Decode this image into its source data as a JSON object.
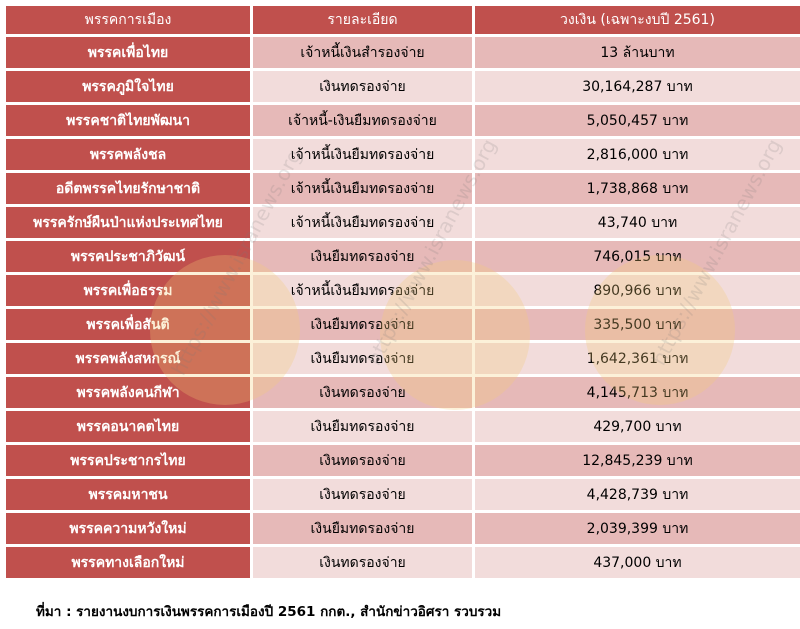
{
  "table": {
    "headers": [
      "พรรคการเมือง",
      "รายละเอียด",
      "วงเงิน (เฉพาะงบปี 2561)"
    ],
    "rows": [
      {
        "party": "พรรคเพื่อไทย",
        "detail": "เจ้าหนี้เงินสำรองจ่าย",
        "amount": "13 ล้านบาท"
      },
      {
        "party": "พรรคภูมิใจไทย",
        "detail": "เงินทดรองจ่าย",
        "amount": "30,164,287 บาท"
      },
      {
        "party": "พรรคชาติไทยพัฒนา",
        "detail": "เจ้าหนี้-เงินยืมทดรองจ่าย",
        "amount": "5,050,457 บาท"
      },
      {
        "party": "พรรคพลังชล",
        "detail": "เจ้าหนี้เงินยืมทดรองจ่าย",
        "amount": "2,816,000 บาท"
      },
      {
        "party": "อดีตพรรคไทยรักษาชาติ",
        "detail": "เจ้าหนี้เงินยืมทดรองจ่าย",
        "amount": "1,738,868 บาท"
      },
      {
        "party": "พรรครักษ์ผืนป่าแห่งประเทศไทย",
        "detail": "เจ้าหนี้เงินยืมทดรองจ่าย",
        "amount": "43,740 บาท"
      },
      {
        "party": "พรรคประชาภิวัฒน์",
        "detail": "เงินยืมทดรองจ่าย",
        "amount": "746,015 บาท"
      },
      {
        "party": "พรรคเพื่อธรรม",
        "detail": "เจ้าหนี้เงินยืมทดรองจ่าย",
        "amount": "890,966 บาท"
      },
      {
        "party": "พรรคเพื่อสันติ",
        "detail": "เงินยืมทดรองจ่าย",
        "amount": "335,500 บาท"
      },
      {
        "party": "พรรคพลังสหกรณ์",
        "detail": "เงินยืมทดรองจ่าย",
        "amount": "1,642,361 บาท"
      },
      {
        "party": "พรรคพลังคนกีฬา",
        "detail": "เงินทดรองจ่าย",
        "amount": "4,145,713 บาท"
      },
      {
        "party": "พรรคอนาคตไทย",
        "detail": "เงินยืมทดรองจ่าย",
        "amount": "429,700 บาท"
      },
      {
        "party": "พรรคประชากรไทย",
        "detail": "เงินทดรองจ่าย",
        "amount": "12,845,239 บาท"
      },
      {
        "party": "พรรคมหาชน",
        "detail": "เงินทดรองจ่าย",
        "amount": "4,428,739 บาท"
      },
      {
        "party": "พรรคความหวังใหม่",
        "detail": "เงินยืมทดรองจ่าย",
        "amount": "2,039,399 บาท"
      },
      {
        "party": "พรรคทางเลือกใหม่",
        "detail": "เงินทดรองจ่าย",
        "amount": "437,000 บาท"
      }
    ]
  },
  "source": "ที่มา : รายงานงบการเงินพรรคการเมืองปี 2561 กกต., สำนักข่าวอิศรา รวบรวม",
  "watermarks": [
    "https://www.isranews.org",
    "https://www.isranews.org",
    "https://www.isranews.org"
  ],
  "colors": {
    "header_bg": "#c0504d",
    "row_dark": "#e6b9b8",
    "row_light": "#f2dcdb"
  }
}
